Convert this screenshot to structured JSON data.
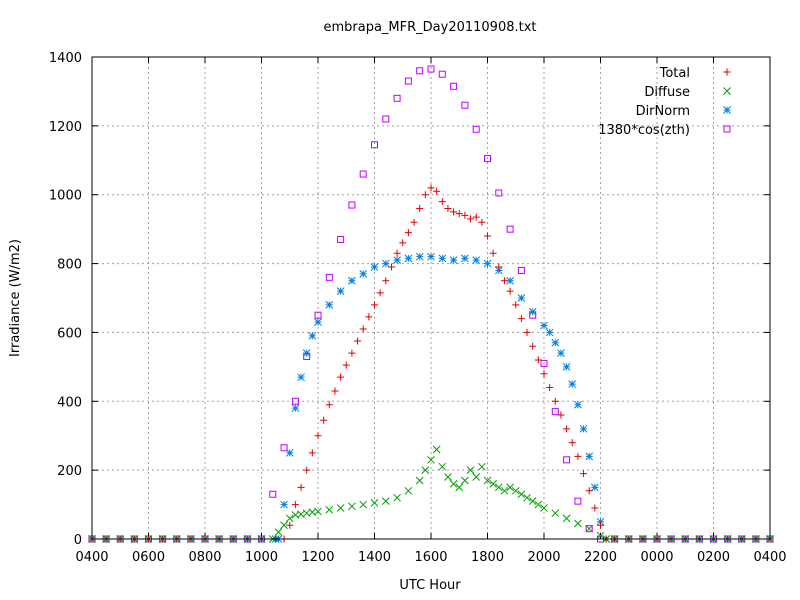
{
  "chart_data": {
    "type": "scatter",
    "title": "embrapa_MFR_Day20110908.txt",
    "xlabel": "UTC Hour",
    "ylabel": "Irradiance (W/m2)",
    "ylim": [
      0,
      1400
    ],
    "xlim_hours": [
      4,
      28
    ],
    "y_ticks": [
      0,
      200,
      400,
      600,
      800,
      1000,
      1200,
      1400
    ],
    "x_ticks": [
      {
        "hour": 4,
        "label": "0400"
      },
      {
        "hour": 6,
        "label": "0600"
      },
      {
        "hour": 8,
        "label": "0800"
      },
      {
        "hour": 10,
        "label": "1000"
      },
      {
        "hour": 12,
        "label": "1200"
      },
      {
        "hour": 14,
        "label": "1400"
      },
      {
        "hour": 16,
        "label": "1600"
      },
      {
        "hour": 18,
        "label": "1800"
      },
      {
        "hour": 20,
        "label": "2000"
      },
      {
        "hour": 22,
        "label": "2200"
      },
      {
        "hour": 24,
        "label": "0000"
      },
      {
        "hour": 26,
        "label": "0200"
      },
      {
        "hour": 28,
        "label": "0400"
      }
    ],
    "grid": true,
    "legend_position": "top-right",
    "series": [
      {
        "name": "Total",
        "marker": "plus",
        "color": "#e00000",
        "x": [
          10.8,
          11.0,
          11.2,
          11.4,
          11.6,
          11.8,
          12.0,
          12.2,
          12.4,
          12.6,
          12.8,
          13.0,
          13.2,
          13.4,
          13.6,
          13.8,
          14.0,
          14.2,
          14.4,
          14.6,
          14.8,
          15.0,
          15.2,
          15.4,
          15.6,
          15.8,
          16.0,
          16.2,
          16.4,
          16.6,
          16.8,
          17.0,
          17.2,
          17.4,
          17.6,
          17.8,
          18.0,
          18.2,
          18.4,
          18.6,
          18.8,
          19.0,
          19.2,
          19.4,
          19.6,
          19.8,
          20.0,
          20.2,
          20.4,
          20.6,
          20.8,
          21.0,
          21.2,
          21.4,
          21.6,
          21.8,
          22.0,
          22.2
        ],
        "y": [
          0,
          40,
          100,
          150,
          200,
          250,
          300,
          345,
          390,
          430,
          470,
          505,
          540,
          575,
          610,
          645,
          680,
          715,
          750,
          790,
          830,
          860,
          890,
          920,
          960,
          1000,
          1020,
          1010,
          980,
          960,
          950,
          945,
          940,
          930,
          935,
          920,
          880,
          830,
          790,
          750,
          720,
          680,
          640,
          600,
          560,
          520,
          480,
          440,
          400,
          360,
          320,
          280,
          240,
          190,
          140,
          90,
          40,
          0
        ]
      },
      {
        "name": "Diffuse",
        "marker": "x",
        "color": "#00a000",
        "x": [
          10.4,
          10.6,
          10.8,
          11.0,
          11.2,
          11.4,
          11.6,
          11.8,
          12.0,
          12.4,
          12.8,
          13.2,
          13.6,
          14.0,
          14.4,
          14.8,
          15.2,
          15.6,
          15.8,
          16.0,
          16.2,
          16.4,
          16.6,
          16.8,
          17.0,
          17.2,
          17.4,
          17.6,
          17.8,
          18.0,
          18.2,
          18.4,
          18.6,
          18.8,
          19.0,
          19.2,
          19.4,
          19.6,
          19.8,
          20.0,
          20.4,
          20.8,
          21.2,
          21.6,
          22.0,
          22.2
        ],
        "y": [
          0,
          20,
          40,
          60,
          70,
          72,
          75,
          78,
          80,
          85,
          90,
          95,
          100,
          105,
          110,
          120,
          140,
          170,
          200,
          230,
          260,
          210,
          180,
          160,
          150,
          170,
          200,
          180,
          210,
          170,
          160,
          150,
          140,
          150,
          140,
          130,
          120,
          110,
          100,
          90,
          75,
          60,
          45,
          30,
          10,
          0
        ]
      },
      {
        "name": "DirNorm",
        "marker": "star",
        "color": "#0080e0",
        "x": [
          10.6,
          10.8,
          11.0,
          11.2,
          11.4,
          11.6,
          11.8,
          12.0,
          12.4,
          12.8,
          13.2,
          13.6,
          14.0,
          14.4,
          14.8,
          15.2,
          15.6,
          16.0,
          16.4,
          16.8,
          17.2,
          17.6,
          18.0,
          18.4,
          18.8,
          19.2,
          19.6,
          20.0,
          20.2,
          20.4,
          20.6,
          20.8,
          21.0,
          21.2,
          21.4,
          21.6,
          21.8,
          22.0,
          22.2
        ],
        "y": [
          0,
          100,
          250,
          380,
          470,
          540,
          590,
          630,
          680,
          720,
          750,
          770,
          790,
          800,
          810,
          815,
          820,
          820,
          815,
          810,
          815,
          810,
          800,
          780,
          750,
          700,
          660,
          620,
          600,
          570,
          540,
          500,
          450,
          390,
          320,
          240,
          150,
          50,
          0
        ]
      },
      {
        "name": "1380*cos(zth)",
        "marker": "square",
        "color": "#c000ff",
        "x": [
          10.0,
          10.4,
          10.8,
          11.2,
          11.6,
          12.0,
          12.4,
          12.8,
          13.2,
          13.6,
          14.0,
          14.4,
          14.8,
          15.2,
          15.6,
          16.0,
          16.4,
          16.8,
          17.2,
          17.6,
          18.0,
          18.4,
          18.8,
          19.2,
          19.6,
          20.0,
          20.4,
          20.8,
          21.2,
          21.6,
          22.0
        ],
        "y": [
          0,
          130,
          265,
          400,
          530,
          650,
          760,
          870,
          970,
          1060,
          1145,
          1220,
          1280,
          1330,
          1360,
          1365,
          1350,
          1315,
          1260,
          1190,
          1105,
          1005,
          900,
          780,
          650,
          510,
          370,
          230,
          110,
          30,
          0
        ]
      }
    ]
  }
}
